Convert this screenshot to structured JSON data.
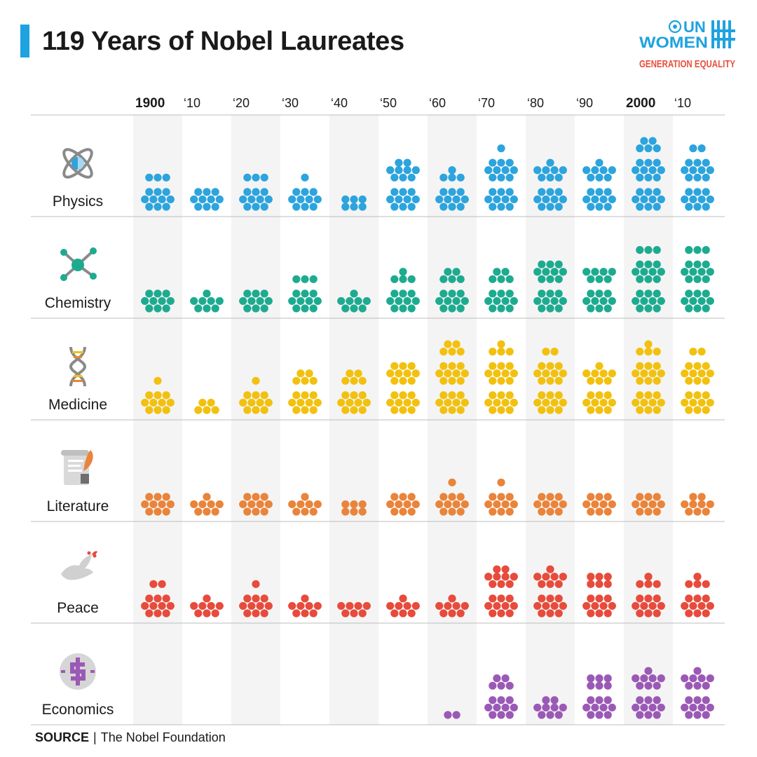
{
  "title": "119 Years of Nobel Laureates",
  "logo": {
    "brand_line1": "UN",
    "brand_line2": "WOMEN",
    "tagline": "GENERATION EQUALITY",
    "brand_color": "#1ea2e0",
    "tagline_color": "#e94e3c"
  },
  "source": {
    "label": "SOURCE",
    "separator": "|",
    "text": "The Nobel Foundation"
  },
  "chart_data": {
    "type": "dot-matrix",
    "title": "119 Years of Nobel Laureates",
    "decades": [
      "1900",
      "'10",
      "'20",
      "'30",
      "'40",
      "'50",
      "'60",
      "'70",
      "'80",
      "'90",
      "2000",
      "'10"
    ],
    "decade_labels": [
      "1900",
      "‘10",
      "‘20",
      "‘30",
      "‘40",
      "‘50",
      "‘60",
      "‘70",
      "‘80",
      "‘90",
      "2000",
      "‘10"
    ],
    "bold_decades": [
      0,
      10
    ],
    "shaded_decades": [
      0,
      2,
      4,
      6,
      8,
      10
    ],
    "categories": [
      {
        "name": "Physics",
        "icon": "atom-icon",
        "color": "#2ca4dd",
        "values": [
          13,
          10,
          13,
          11,
          6,
          19,
          14,
          21,
          18,
          18,
          25,
          22
        ]
      },
      {
        "name": "Chemistry",
        "icon": "molecule-icon",
        "color": "#1dab90",
        "values": [
          10,
          8,
          10,
          13,
          8,
          14,
          15,
          15,
          20,
          17,
          23,
          23
        ]
      },
      {
        "name": "Medicine",
        "icon": "dna-icon",
        "color": "#f2c10f",
        "values": [
          11,
          5,
          11,
          15,
          15,
          20,
          25,
          24,
          22,
          18,
          24,
          22
        ]
      },
      {
        "name": "Literature",
        "icon": "scroll-icon",
        "color": "#e9843a",
        "values": [
          10,
          8,
          10,
          8,
          6,
          10,
          11,
          11,
          10,
          10,
          10,
          9
        ]
      },
      {
        "name": "Peace",
        "icon": "dove-icon",
        "color": "#e74b3c",
        "values": [
          12,
          8,
          11,
          8,
          7,
          8,
          8,
          19,
          18,
          16,
          14,
          14
        ]
      },
      {
        "name": "Economics",
        "icon": "dollar-icon",
        "color": "#9b59b6",
        "values": [
          0,
          0,
          0,
          0,
          0,
          0,
          2,
          15,
          9,
          16,
          18,
          18
        ]
      }
    ]
  }
}
